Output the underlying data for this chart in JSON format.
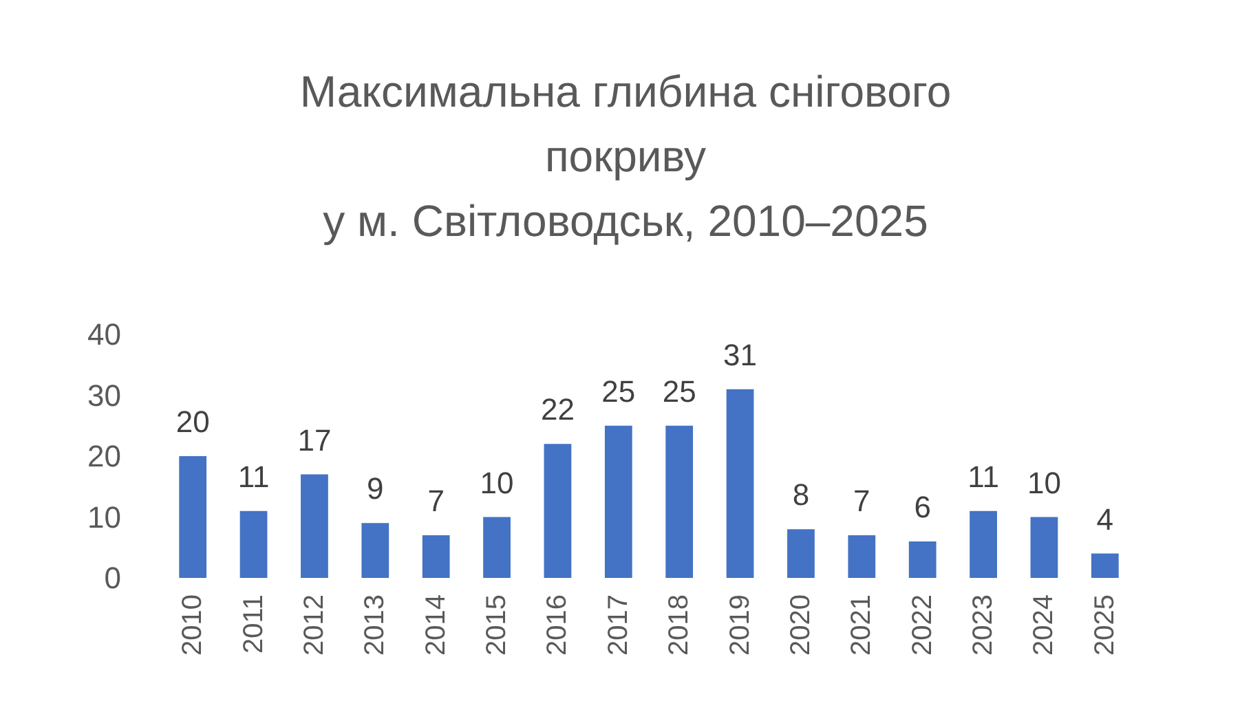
{
  "chart_data": {
    "type": "bar",
    "title": "Максимальна глибина снігового\nпокриву\nу м. Світловодськ, 2010–2025",
    "categories": [
      "2010",
      "2011",
      "2012",
      "2013",
      "2014",
      "2015",
      "2016",
      "2017",
      "2018",
      "2019",
      "2020",
      "2021",
      "2022",
      "2023",
      "2024",
      "2025"
    ],
    "values": [
      20,
      11,
      17,
      9,
      7,
      10,
      22,
      25,
      25,
      31,
      8,
      7,
      6,
      11,
      10,
      4
    ],
    "color": "#4472c4",
    "ylim": [
      0,
      40
    ],
    "yticks": [
      0,
      10,
      20,
      30,
      40
    ],
    "grid": false,
    "data_labels": true
  }
}
